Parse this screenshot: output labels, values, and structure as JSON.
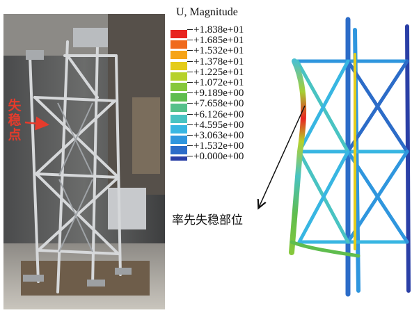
{
  "legend": {
    "title": "U, Magnitude",
    "entries": [
      {
        "label": "+1.838e+01",
        "color": "#e8231f"
      },
      {
        "label": "+1.685e+01",
        "color": "#f06a1c"
      },
      {
        "label": "+1.532e+01",
        "color": "#f6a418"
      },
      {
        "label": "+1.378e+01",
        "color": "#e4cc1a"
      },
      {
        "label": "+1.225e+01",
        "color": "#b6d12a"
      },
      {
        "label": "+1.072e+01",
        "color": "#86c83c"
      },
      {
        "label": "+9.189e+00",
        "color": "#5fbd4e"
      },
      {
        "label": "+7.658e+00",
        "color": "#55c08a"
      },
      {
        "label": "+6.126e+00",
        "color": "#49c3c2"
      },
      {
        "label": "+4.595e+00",
        "color": "#38b6e2"
      },
      {
        "label": "+3.063e+00",
        "color": "#2f96de"
      },
      {
        "label": "+1.532e+00",
        "color": "#2c6cc8"
      },
      {
        "label": "+0.000e+00",
        "color": "#2a3fa6"
      }
    ]
  },
  "photo_label": "失稳点",
  "callout": "率先失稳部位"
}
